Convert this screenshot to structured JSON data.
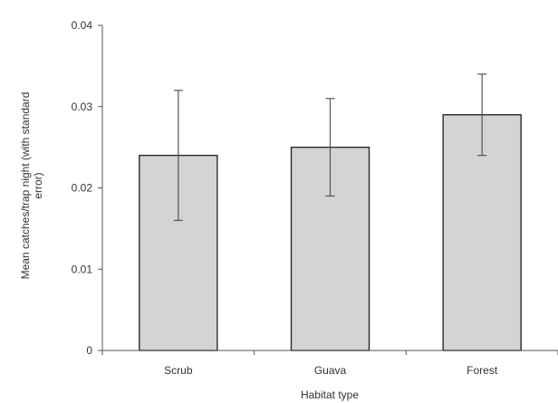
{
  "chart_data": {
    "type": "bar",
    "title": "",
    "xlabel": "Habitat type",
    "ylabel": "Mean catches/trap night (with standard error)",
    "ylabel_lines": [
      "Mean catches/trap night (with standard",
      "error)"
    ],
    "categories": [
      "Scrub",
      "Guava",
      "Forest"
    ],
    "values": [
      0.024,
      0.025,
      0.029
    ],
    "error_low": [
      0.016,
      0.019,
      0.024
    ],
    "error_high": [
      0.032,
      0.031,
      0.034
    ],
    "ylim": [
      0,
      0.04
    ],
    "yticks": [
      0,
      0.01,
      0.02,
      0.03,
      0.04
    ],
    "ytick_labels": [
      "0",
      "0.01",
      "0.02",
      "0.03",
      "0.04"
    ],
    "grid": false,
    "legend": "none",
    "colors": {
      "bar_fill": "#d4d4d4",
      "bar_stroke": "#2b2b2b",
      "axis": "#555555"
    }
  }
}
